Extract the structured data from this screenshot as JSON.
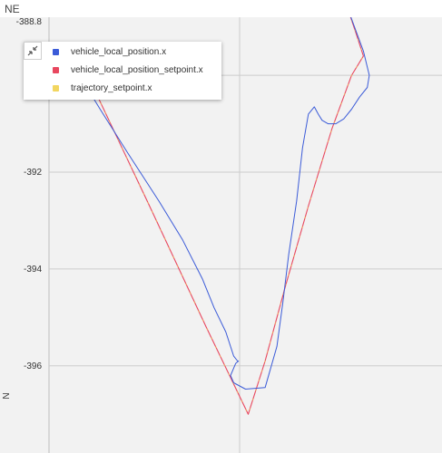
{
  "window": {
    "title": "NE"
  },
  "legend": {
    "toggle_icon": "collapse-arrows-icon",
    "items": [
      {
        "label": "vehicle_local_position.x",
        "color": "#3b5bd8"
      },
      {
        "label": "vehicle_local_position_setpoint.x",
        "color": "#e8475f"
      },
      {
        "label": "trajectory_setpoint.x",
        "color": "#f2d660"
      }
    ]
  },
  "chart_data": {
    "type": "line",
    "ylabel": "N",
    "ylim": [
      -397.8,
      -388.8
    ],
    "yticks": [
      "-388.8",
      "-390",
      "-392",
      "-394",
      "-396"
    ],
    "grid": true,
    "legend_position": "top-left",
    "series": [
      {
        "name": "vehicle_local_position.x",
        "color": "#3b5bd8",
        "x": [
          0.07,
          0.13,
          0.2,
          0.28,
          0.34,
          0.39,
          0.42,
          0.45,
          0.47,
          0.48,
          0.482,
          0.475,
          0.462,
          0.47,
          0.5,
          0.55,
          0.58,
          0.595,
          0.61,
          0.63,
          0.645,
          0.66,
          0.675,
          0.685,
          0.695,
          0.71,
          0.73,
          0.75,
          0.77,
          0.79,
          0.81,
          0.815,
          0.8,
          0.775,
          0.75,
          0.735
        ],
        "y": [
          -389.9,
          -390.7,
          -391.6,
          -392.6,
          -393.4,
          -394.2,
          -394.8,
          -395.3,
          -395.8,
          -395.9,
          -395.9,
          -395.95,
          -396.2,
          -396.35,
          -396.48,
          -396.45,
          -395.6,
          -394.7,
          -393.7,
          -392.6,
          -391.5,
          -390.8,
          -390.65,
          -390.8,
          -390.93,
          -391.0,
          -391.0,
          -390.9,
          -390.7,
          -390.45,
          -390.25,
          -390.0,
          -389.5,
          -388.95,
          -388.4,
          -388.0
        ]
      },
      {
        "name": "vehicle_local_position_setpoint.x",
        "color": "#e8475f",
        "x": [
          0.11,
          0.25,
          0.4,
          0.507,
          0.55,
          0.6,
          0.66,
          0.72,
          0.77,
          0.8,
          0.78,
          0.755
        ],
        "y": [
          -390.2,
          -392.6,
          -395.2,
          -397.0,
          -395.9,
          -394.4,
          -392.7,
          -391.1,
          -390.0,
          -389.6,
          -389.1,
          -388.5
        ]
      },
      {
        "name": "trajectory_setpoint.x",
        "color": "#f2d660",
        "x": [
          0.11,
          0.25,
          0.4,
          0.507,
          0.55,
          0.6,
          0.66,
          0.72,
          0.77,
          0.8,
          0.78,
          0.755
        ],
        "y": [
          -390.2,
          -392.6,
          -395.2,
          -397.0,
          -395.9,
          -394.4,
          -392.7,
          -391.1,
          -390.0,
          -389.6,
          -389.1,
          -388.5
        ]
      }
    ]
  }
}
